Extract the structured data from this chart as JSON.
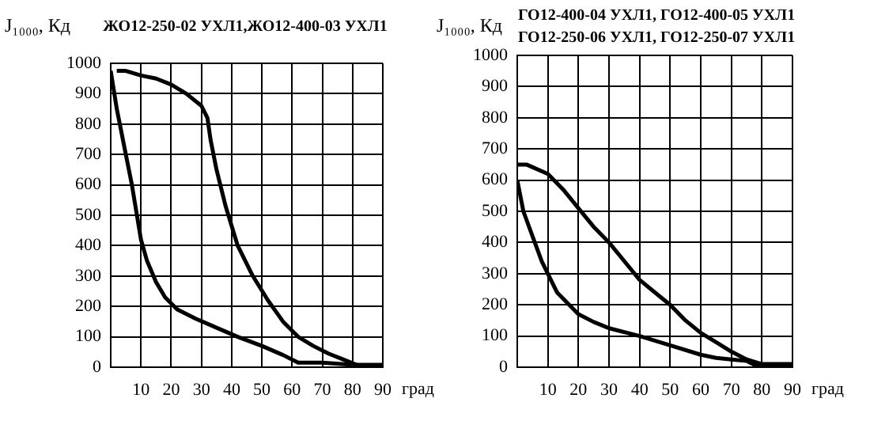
{
  "chart_data": [
    {
      "type": "line",
      "title": "ЖО12-250-02 УХЛ1,ЖО12-400-03 УХЛ1",
      "ylabel": "J₁₀₀₀, Кд",
      "xlabel": "град",
      "xlim": [
        0,
        90
      ],
      "xticks": [
        10,
        20,
        30,
        40,
        50,
        60,
        70,
        80,
        90
      ],
      "ylim": [
        0,
        1000
      ],
      "yticks": [
        0,
        100,
        200,
        300,
        400,
        500,
        600,
        700,
        800,
        900,
        1000
      ],
      "grid": true,
      "legend": false,
      "marker": "none",
      "line_style": "solid",
      "series": [
        {
          "color": "#000000",
          "x": [
            2,
            5,
            10,
            15,
            20,
            25,
            30,
            32,
            33,
            35,
            38,
            42,
            47,
            52,
            57,
            62,
            67,
            72,
            77,
            82,
            90
          ],
          "values": [
            975,
            975,
            960,
            950,
            930,
            900,
            860,
            820,
            750,
            650,
            530,
            400,
            300,
            220,
            150,
            100,
            70,
            45,
            25,
            5,
            5
          ]
        },
        {
          "color": "#000000",
          "x": [
            0,
            2,
            5,
            7,
            9,
            10,
            12,
            15,
            18,
            22,
            28,
            35,
            42,
            50,
            57,
            62,
            70,
            80,
            90
          ],
          "values": [
            975,
            850,
            700,
            600,
            480,
            420,
            350,
            280,
            230,
            190,
            160,
            130,
            100,
            70,
            40,
            15,
            15,
            8,
            8
          ]
        }
      ]
    },
    {
      "type": "line",
      "title": "ГО12-400-04 УХЛ1, ГО12-400-05 УХЛ1\nГО12-250-06 УХЛ1, ГО12-250-07 УХЛ1",
      "ylabel": "J₁₀₀₀, Кд",
      "xlabel": "град",
      "xlim": [
        0,
        90
      ],
      "xticks": [
        10,
        20,
        30,
        40,
        50,
        60,
        70,
        80,
        90
      ],
      "ylim": [
        0,
        1000
      ],
      "yticks": [
        0,
        100,
        200,
        300,
        400,
        500,
        600,
        700,
        800,
        900,
        1000
      ],
      "grid": true,
      "legend": false,
      "marker": "none",
      "line_style": "solid",
      "series": [
        {
          "color": "#000000",
          "x": [
            0,
            3,
            10,
            15,
            20,
            25,
            30,
            35,
            40,
            45,
            50,
            55,
            60,
            65,
            70,
            75,
            80,
            90
          ],
          "values": [
            650,
            650,
            620,
            570,
            510,
            450,
            400,
            340,
            280,
            240,
            200,
            150,
            110,
            80,
            50,
            25,
            10,
            10
          ]
        },
        {
          "color": "#000000",
          "x": [
            0,
            2,
            5,
            8,
            10,
            13,
            17,
            20,
            25,
            30,
            40,
            50,
            60,
            65,
            70,
            75,
            78,
            90
          ],
          "values": [
            600,
            500,
            420,
            340,
            300,
            240,
            200,
            170,
            145,
            125,
            100,
            70,
            40,
            30,
            25,
            20,
            5,
            5
          ]
        }
      ]
    }
  ]
}
